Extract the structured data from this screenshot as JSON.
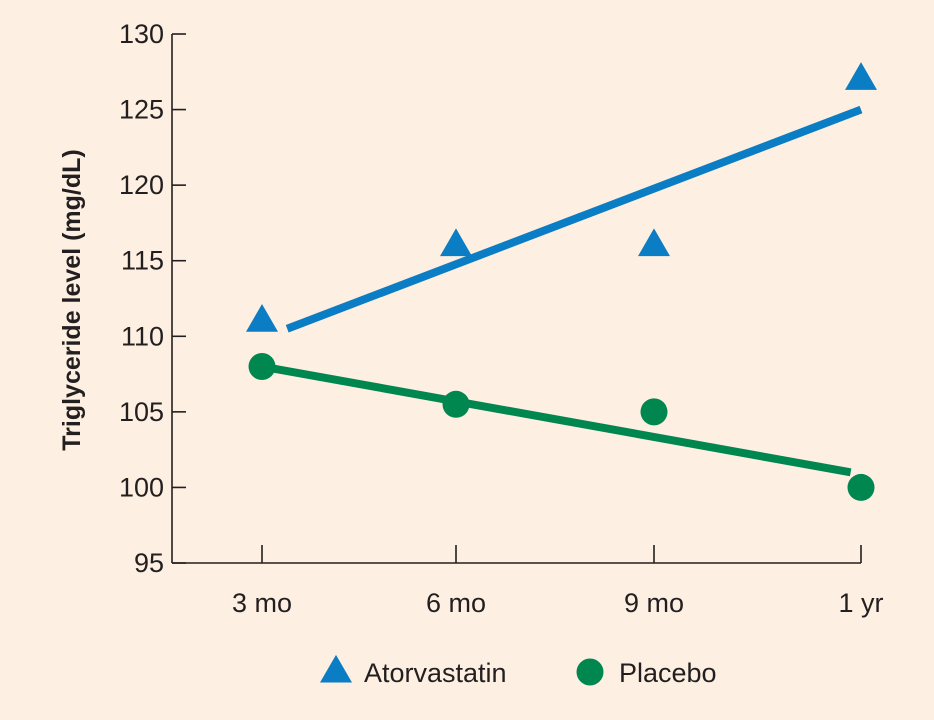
{
  "colors": {
    "background": "#fdf0e2",
    "atorvastatin": "#0b7dc4",
    "placebo": "#00864f",
    "axis": "#231f20"
  },
  "chart_data": {
    "type": "scatter",
    "title": "",
    "xlabel": "",
    "ylabel": "Triglyceride level (mg/dL)",
    "categories": [
      "3 mo",
      "6 mo",
      "9 mo",
      "1 yr"
    ],
    "ylim": [
      95,
      130
    ],
    "yticks": [
      95,
      100,
      105,
      110,
      115,
      120,
      125,
      130
    ],
    "grid": false,
    "legend_position": "bottom",
    "series": [
      {
        "name": "Atorvastatin",
        "marker": "triangle",
        "color": "#0b7dc4",
        "values": [
          111,
          116,
          116,
          127
        ],
        "trendline": {
          "start": [
            1.13,
            110.5
          ],
          "end": [
            4.0,
            125
          ]
        }
      },
      {
        "name": "Placebo",
        "marker": "circle",
        "color": "#00864f",
        "values": [
          108,
          105.5,
          105,
          100
        ],
        "trendline": {
          "start": [
            1.0,
            108
          ],
          "end": [
            3.95,
            101
          ]
        }
      }
    ]
  }
}
